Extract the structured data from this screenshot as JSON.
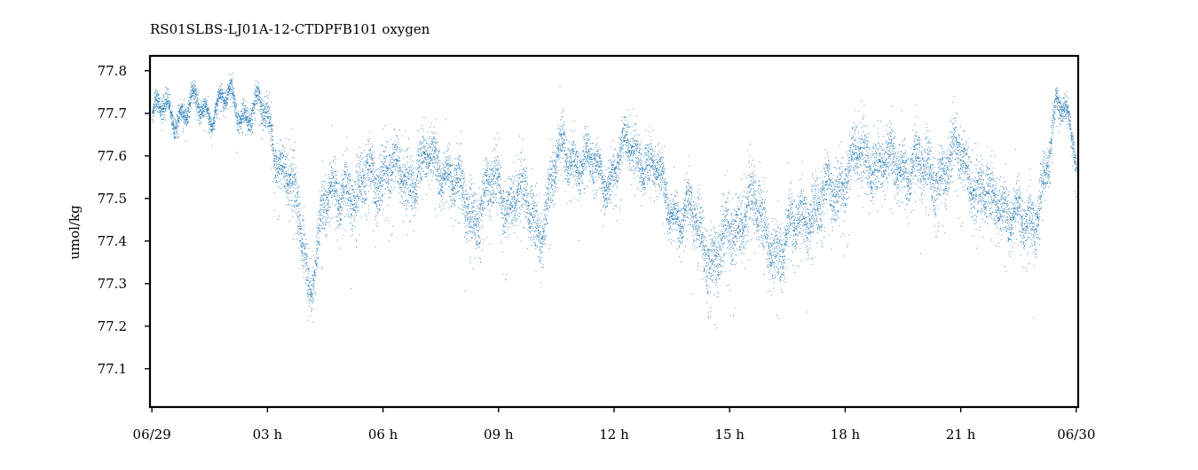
{
  "chart_data": {
    "type": "scatter",
    "title": "RS01SLBS-LJ01A-12-CTDPFB101 oxygen",
    "xlabel": "",
    "ylabel": "umol/kg",
    "x_ticks": [
      "06/29",
      "03 h",
      "06 h",
      "09 h",
      "12 h",
      "15 h",
      "18 h",
      "21 h",
      "06/30"
    ],
    "y_ticks": [
      "77.1",
      "77.2",
      "77.3",
      "77.4",
      "77.5",
      "77.6",
      "77.7",
      "77.8"
    ],
    "x_range_hours": [
      -0.05,
      24.05
    ],
    "ylim": [
      77.01,
      77.835
    ],
    "grid": false,
    "legend": "none",
    "series_color": "#1f77b4",
    "series": [
      {
        "x_hours": [
          0,
          0.5,
          1,
          1.5,
          2,
          2.5,
          2.8,
          3,
          3.3,
          3.6,
          3.9,
          4.1,
          4.4,
          4.7,
          5,
          5.3,
          5.6,
          5.9,
          6.2,
          6.5,
          6.8,
          7.1,
          7.4,
          7.7,
          8,
          8.3,
          8.6,
          8.9,
          9.2,
          9.5,
          9.8,
          10.1,
          10.4,
          10.7,
          11,
          11.3,
          11.6,
          11.9,
          12.2,
          12.5,
          12.8,
          13.1,
          13.4,
          13.7,
          14,
          14.3,
          14.6,
          14.9,
          15.2,
          15.5,
          15.8,
          16.1,
          16.4,
          16.7,
          17,
          17.3,
          17.6,
          17.9,
          18.2,
          18.5,
          18.8,
          19.1,
          19.4,
          19.7,
          20,
          20.3,
          20.6,
          20.9,
          21.2,
          21.5,
          21.8,
          22.1,
          22.4,
          22.7,
          22.9,
          23.1,
          23.3,
          23.5,
          23.7,
          23.9,
          24
        ],
        "y_center": [
          77.69,
          77.71,
          77.705,
          77.72,
          77.725,
          77.71,
          77.7,
          77.69,
          77.6,
          77.52,
          77.42,
          77.3,
          77.45,
          77.52,
          77.55,
          77.47,
          77.58,
          77.56,
          77.55,
          77.57,
          77.55,
          77.58,
          77.6,
          77.57,
          77.5,
          77.47,
          77.5,
          77.53,
          77.5,
          77.52,
          77.46,
          77.44,
          77.55,
          77.62,
          77.6,
          77.58,
          77.56,
          77.56,
          77.6,
          77.62,
          77.6,
          77.55,
          77.5,
          77.47,
          77.45,
          77.42,
          77.35,
          77.4,
          77.45,
          77.5,
          77.44,
          77.4,
          77.38,
          77.45,
          77.48,
          77.47,
          77.52,
          77.55,
          77.58,
          77.6,
          77.6,
          77.57,
          77.58,
          77.6,
          77.55,
          77.56,
          77.58,
          77.6,
          77.57,
          77.52,
          77.48,
          77.5,
          77.47,
          77.42,
          77.45,
          77.55,
          77.6,
          77.7,
          77.72,
          77.68,
          77.6
        ],
        "y_spread": [
          0.04,
          0.035,
          0.04,
          0.035,
          0.04,
          0.04,
          0.05,
          0.06,
          0.08,
          0.1,
          0.1,
          0.08,
          0.1,
          0.1,
          0.1,
          0.1,
          0.1,
          0.1,
          0.1,
          0.1,
          0.09,
          0.09,
          0.09,
          0.09,
          0.1,
          0.1,
          0.1,
          0.1,
          0.1,
          0.1,
          0.1,
          0.1,
          0.1,
          0.1,
          0.08,
          0.07,
          0.07,
          0.07,
          0.08,
          0.08,
          0.08,
          0.08,
          0.08,
          0.08,
          0.09,
          0.1,
          0.12,
          0.12,
          0.12,
          0.11,
          0.11,
          0.11,
          0.11,
          0.11,
          0.1,
          0.1,
          0.1,
          0.1,
          0.1,
          0.1,
          0.1,
          0.1,
          0.1,
          0.1,
          0.1,
          0.1,
          0.1,
          0.1,
          0.1,
          0.1,
          0.1,
          0.1,
          0.1,
          0.1,
          0.1,
          0.08,
          0.06,
          0.05,
          0.04,
          0.04,
          0.05
        ]
      }
    ]
  }
}
